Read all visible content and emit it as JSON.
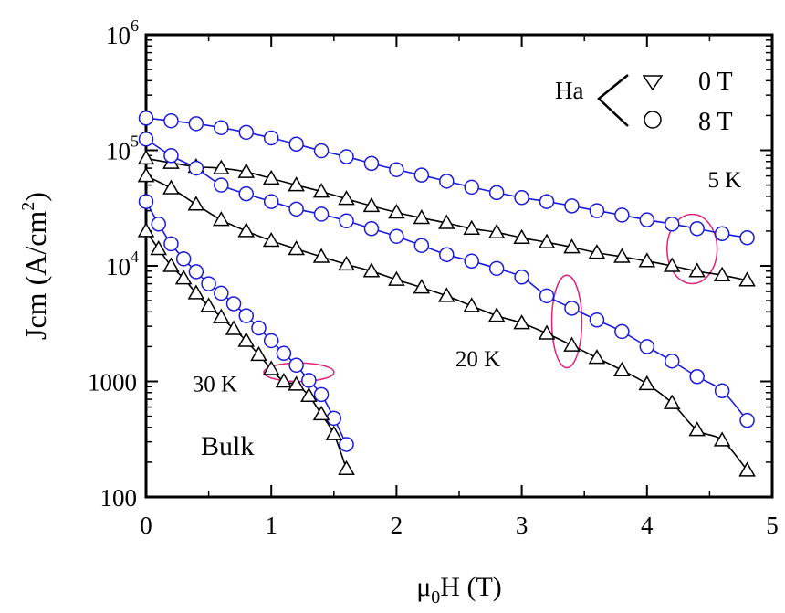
{
  "chart_data": {
    "type": "scatter",
    "title": "",
    "xlabel": {
      "pre": "μ",
      "sub": "0",
      "post": "H (T)"
    },
    "ylabel": {
      "pre": "Jcm (A/cm",
      "sup": "2",
      "post": ")"
    },
    "xlim": [
      0,
      5
    ],
    "ylim": [
      100,
      1000000
    ],
    "yscale": "log",
    "x_ticks": [
      "0",
      "1",
      "2",
      "3",
      "4",
      "5"
    ],
    "y_ticks": [
      {
        "value": 100,
        "base": "100",
        "exp": ""
      },
      {
        "value": 1000,
        "base": "1000",
        "exp": ""
      },
      {
        "value": 10000,
        "base": "10",
        "exp": "4"
      },
      {
        "value": 100000,
        "base": "10",
        "exp": "5"
      },
      {
        "value": 1000000,
        "base": "10",
        "exp": "6"
      }
    ],
    "legend": {
      "title": "Ha",
      "entries": [
        {
          "marker": "triangle",
          "label": "0 T"
        },
        {
          "marker": "circle",
          "label": "8 T"
        }
      ]
    },
    "annotations": [
      {
        "text": "5 K",
        "x": 4.62,
        "y": 48000
      },
      {
        "text": "20 K",
        "x": 2.65,
        "y": 1350
      },
      {
        "text": "30 K",
        "x": 0.55,
        "y": 820
      },
      {
        "text": "Bulk",
        "x": 0.65,
        "y": 230
      }
    ],
    "ellipses": [
      {
        "cx": 4.36,
        "cy": 14000,
        "rx": 0.2,
        "ry_decades": 0.3
      },
      {
        "cx": 3.36,
        "cy": 3300,
        "rx": 0.12,
        "ry_decades": 0.4
      },
      {
        "cx": 1.22,
        "cy": 1200,
        "rx": 0.28,
        "ry_decades": 0.08
      }
    ],
    "colors": {
      "circle_series": "#1a1adb",
      "triangle_series": "#000000",
      "ellipse": "#e0207a"
    },
    "series": [
      {
        "marker": "circle",
        "color": "#1a1adb",
        "x": [
          0,
          0.2,
          0.4,
          0.6,
          0.8,
          1.0,
          1.2,
          1.4,
          1.6,
          1.8,
          2.0,
          2.2,
          2.4,
          2.6,
          2.8,
          3.0,
          3.2,
          3.4,
          3.6,
          3.8,
          4.0,
          4.2,
          4.4,
          4.6,
          4.8
        ],
        "y": [
          190000,
          180000,
          170000,
          157000,
          143000,
          128000,
          113000,
          99000,
          88000,
          77000,
          68000,
          61000,
          54000,
          48000,
          43000,
          39000,
          36000,
          33000,
          30000,
          27500,
          25000,
          23000,
          21000,
          19000,
          17500
        ]
      },
      {
        "marker": "triangle",
        "color": "#000000",
        "x": [
          0,
          0.2,
          0.4,
          0.6,
          0.8,
          1.0,
          1.2,
          1.4,
          1.6,
          1.8,
          2.0,
          2.2,
          2.4,
          2.6,
          2.8,
          3.0,
          3.2,
          3.4,
          3.6,
          3.8,
          4.0,
          4.2,
          4.4,
          4.6,
          4.8
        ],
        "y": [
          85000,
          78000,
          72000,
          70000,
          65000,
          57000,
          50000,
          44000,
          38000,
          33000,
          29000,
          26000,
          23500,
          21000,
          19500,
          17500,
          16000,
          14500,
          13000,
          12000,
          11000,
          10000,
          9000,
          8300,
          7500
        ]
      },
      {
        "marker": "circle",
        "color": "#1a1adb",
        "x": [
          0,
          0.2,
          0.4,
          0.6,
          0.8,
          1.0,
          1.2,
          1.4,
          1.6,
          1.8,
          2.0,
          2.2,
          2.4,
          2.6,
          2.8,
          3.0,
          3.2,
          3.4,
          3.6,
          3.8,
          4.0,
          4.2,
          4.4,
          4.6,
          4.8
        ],
        "y": [
          125000,
          90000,
          70000,
          50000,
          42000,
          36000,
          31000,
          28000,
          24500,
          21000,
          18000,
          15000,
          12500,
          11000,
          9500,
          8000,
          5500,
          4300,
          3400,
          2700,
          2000,
          1500,
          1100,
          830,
          460
        ]
      },
      {
        "marker": "triangle",
        "color": "#000000",
        "x": [
          0,
          0.2,
          0.4,
          0.6,
          0.8,
          1.0,
          1.2,
          1.4,
          1.6,
          1.8,
          2.0,
          2.2,
          2.4,
          2.6,
          2.8,
          3.0,
          3.2,
          3.4,
          3.6,
          3.8,
          4.0,
          4.2,
          4.4,
          4.6,
          4.8
        ],
        "y": [
          60000,
          47000,
          34000,
          25000,
          20000,
          16500,
          14000,
          12000,
          10300,
          9000,
          7600,
          6500,
          5500,
          4500,
          3700,
          3200,
          2600,
          2050,
          1600,
          1250,
          950,
          650,
          380,
          310,
          170
        ]
      },
      {
        "marker": "circle",
        "color": "#1a1adb",
        "x": [
          0,
          0.1,
          0.2,
          0.3,
          0.4,
          0.5,
          0.6,
          0.7,
          0.8,
          0.9,
          1.0,
          1.1,
          1.2,
          1.3,
          1.4,
          1.5,
          1.6
        ],
        "y": [
          36000,
          23000,
          15500,
          11500,
          8900,
          7000,
          5800,
          4700,
          3700,
          2900,
          2250,
          1750,
          1380,
          1020,
          770,
          480,
          285
        ]
      },
      {
        "marker": "triangle",
        "color": "#000000",
        "x": [
          0,
          0.1,
          0.2,
          0.3,
          0.4,
          0.5,
          0.6,
          0.7,
          0.8,
          0.9,
          1.0,
          1.1,
          1.2,
          1.3,
          1.4,
          1.5,
          1.6
        ],
        "y": [
          20000,
          14000,
          10000,
          7800,
          5800,
          4500,
          3600,
          2850,
          2250,
          1700,
          1280,
          1000,
          940,
          750,
          520,
          350,
          175
        ]
      }
    ]
  }
}
